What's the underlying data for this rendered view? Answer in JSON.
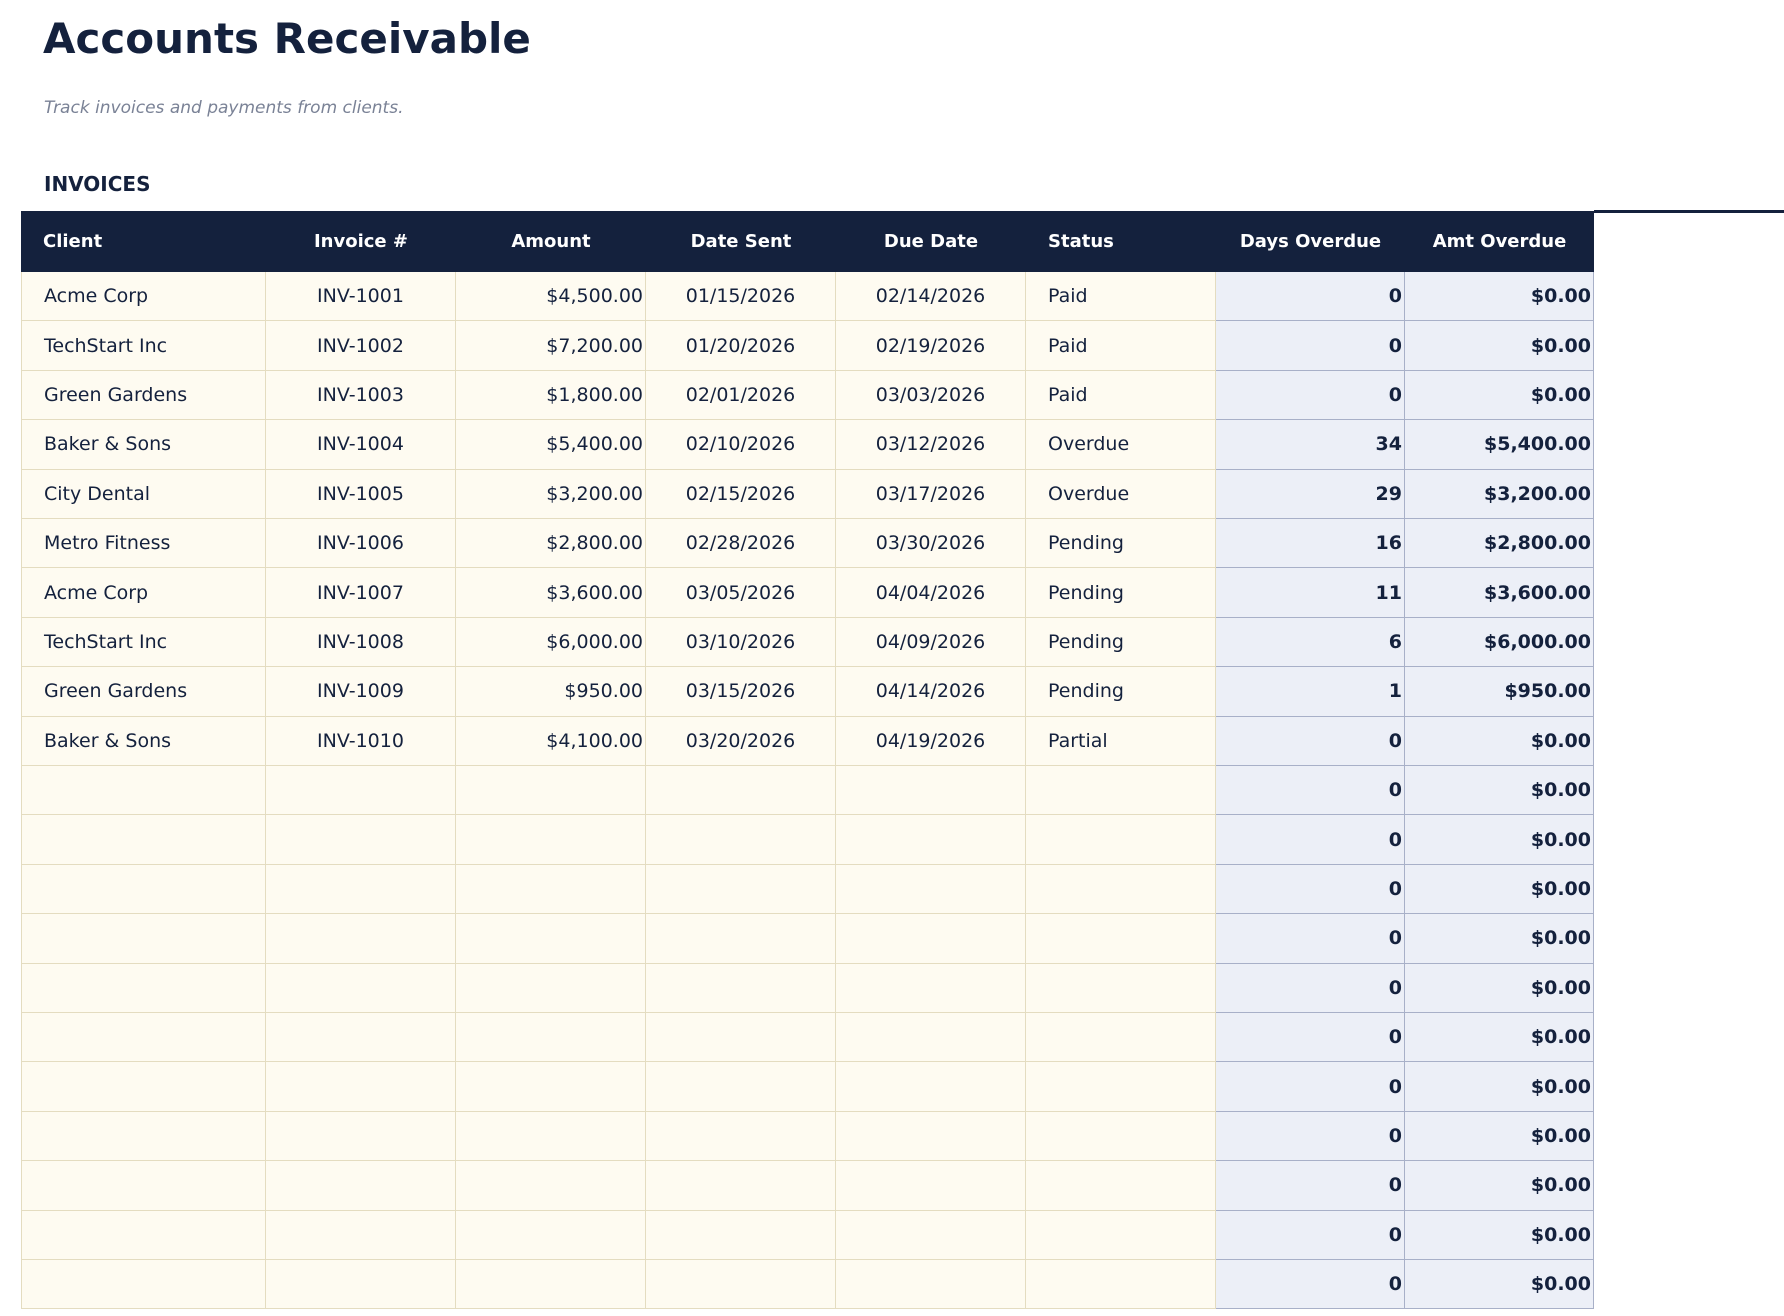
{
  "header": {
    "title": "Accounts Receivable",
    "subtitle": "Track invoices and payments from clients."
  },
  "section": "INVOICES",
  "table": {
    "columns": [
      "Client",
      "Invoice #",
      "Amount",
      "Date Sent",
      "Due Date",
      "Status",
      "Days Overdue",
      "Amt Overdue"
    ],
    "rows": [
      {
        "client": "Acme Corp",
        "invoice": "INV-1001",
        "amount": "$4,500.00",
        "date_sent": "01/15/2026",
        "due_date": "02/14/2026",
        "status": "Paid",
        "days_overdue": 0,
        "amt_overdue": "$0.00"
      },
      {
        "client": "TechStart Inc",
        "invoice": "INV-1002",
        "amount": "$7,200.00",
        "date_sent": "01/20/2026",
        "due_date": "02/19/2026",
        "status": "Paid",
        "days_overdue": 0,
        "amt_overdue": "$0.00"
      },
      {
        "client": "Green Gardens",
        "invoice": "INV-1003",
        "amount": "$1,800.00",
        "date_sent": "02/01/2026",
        "due_date": "03/03/2026",
        "status": "Paid",
        "days_overdue": 0,
        "amt_overdue": "$0.00"
      },
      {
        "client": "Baker & Sons",
        "invoice": "INV-1004",
        "amount": "$5,400.00",
        "date_sent": "02/10/2026",
        "due_date": "03/12/2026",
        "status": "Overdue",
        "days_overdue": 34,
        "amt_overdue": "$5,400.00"
      },
      {
        "client": "City Dental",
        "invoice": "INV-1005",
        "amount": "$3,200.00",
        "date_sent": "02/15/2026",
        "due_date": "03/17/2026",
        "status": "Overdue",
        "days_overdue": 29,
        "amt_overdue": "$3,200.00"
      },
      {
        "client": "Metro Fitness",
        "invoice": "INV-1006",
        "amount": "$2,800.00",
        "date_sent": "02/28/2026",
        "due_date": "03/30/2026",
        "status": "Pending",
        "days_overdue": 16,
        "amt_overdue": "$2,800.00"
      },
      {
        "client": "Acme Corp",
        "invoice": "INV-1007",
        "amount": "$3,600.00",
        "date_sent": "03/05/2026",
        "due_date": "04/04/2026",
        "status": "Pending",
        "days_overdue": 11,
        "amt_overdue": "$3,600.00"
      },
      {
        "client": "TechStart Inc",
        "invoice": "INV-1008",
        "amount": "$6,000.00",
        "date_sent": "03/10/2026",
        "due_date": "04/09/2026",
        "status": "Pending",
        "days_overdue": 6,
        "amt_overdue": "$6,000.00"
      },
      {
        "client": "Green Gardens",
        "invoice": "INV-1009",
        "amount": "$950.00",
        "date_sent": "03/15/2026",
        "due_date": "04/14/2026",
        "status": "Pending",
        "days_overdue": 1,
        "amt_overdue": "$950.00"
      },
      {
        "client": "Baker & Sons",
        "invoice": "INV-1010",
        "amount": "$4,100.00",
        "date_sent": "03/20/2026",
        "due_date": "04/19/2026",
        "status": "Partial",
        "days_overdue": 0,
        "amt_overdue": "$0.00"
      },
      {
        "days_overdue": 0,
        "amt_overdue": "$0.00"
      },
      {
        "days_overdue": 0,
        "amt_overdue": "$0.00"
      },
      {
        "days_overdue": 0,
        "amt_overdue": "$0.00"
      },
      {
        "days_overdue": 0,
        "amt_overdue": "$0.00"
      },
      {
        "days_overdue": 0,
        "amt_overdue": "$0.00"
      },
      {
        "days_overdue": 0,
        "amt_overdue": "$0.00"
      },
      {
        "days_overdue": 0,
        "amt_overdue": "$0.00"
      },
      {
        "days_overdue": 0,
        "amt_overdue": "$0.00"
      },
      {
        "days_overdue": 0,
        "amt_overdue": "$0.00"
      },
      {
        "days_overdue": 0,
        "amt_overdue": "$0.00"
      },
      {
        "days_overdue": 0,
        "amt_overdue": "$0.00"
      }
    ]
  }
}
